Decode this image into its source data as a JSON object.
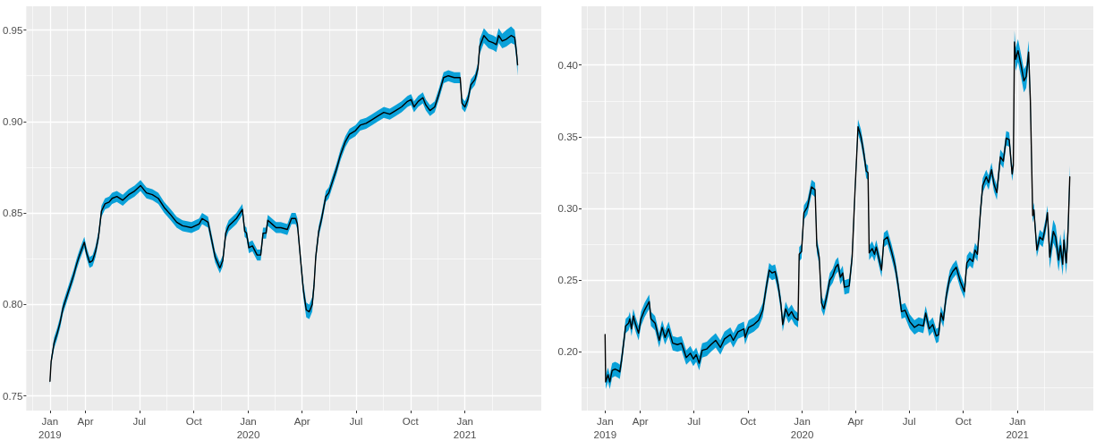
{
  "chart_data": [
    {
      "type": "line",
      "x": [
        "2019-01-31",
        "2019-02-02",
        "2019-02-07",
        "2019-02-12",
        "2019-02-17",
        "2019-02-22",
        "2019-02-27",
        "2019-03-06",
        "2019-03-12",
        "2019-03-17",
        "2019-03-22",
        "2019-03-30",
        "2019-04-03",
        "2019-04-08",
        "2019-04-13",
        "2019-04-18",
        "2019-04-23",
        "2019-04-28",
        "2019-05-04",
        "2019-05-11",
        "2019-05-16",
        "2019-05-24",
        "2019-06-03",
        "2019-06-13",
        "2019-06-23",
        "2019-07-03",
        "2019-07-13",
        "2019-07-23",
        "2019-08-02",
        "2019-08-12",
        "2019-08-23",
        "2019-09-02",
        "2019-09-12",
        "2019-09-27",
        "2019-10-10",
        "2019-10-15",
        "2019-10-25",
        "2019-11-01",
        "2019-11-06",
        "2019-11-14",
        "2019-11-19",
        "2019-11-24",
        "2019-11-29",
        "2019-12-12",
        "2019-12-22",
        "2019-12-26",
        "2019-12-29",
        "2020-01-02",
        "2020-01-08",
        "2020-01-16",
        "2020-01-22",
        "2020-01-26",
        "2020-01-31",
        "2020-02-03",
        "2020-02-10",
        "2020-02-17",
        "2020-02-25",
        "2020-03-07",
        "2020-03-14",
        "2020-03-21",
        "2020-03-24",
        "2020-03-29",
        "2020-04-03",
        "2020-04-08",
        "2020-04-13",
        "2020-04-18",
        "2020-04-21",
        "2020-04-24",
        "2020-04-29",
        "2020-05-04",
        "2020-05-11",
        "2020-05-16",
        "2020-05-21",
        "2020-05-29",
        "2020-06-05",
        "2020-06-13",
        "2020-06-20",
        "2020-06-30",
        "2020-07-08",
        "2020-07-18",
        "2020-07-28",
        "2020-08-07",
        "2020-08-17",
        "2020-08-27",
        "2020-09-06",
        "2020-09-16",
        "2020-09-26",
        "2020-10-02",
        "2020-10-07",
        "2020-10-14",
        "2020-10-22",
        "2020-10-27",
        "2020-11-03",
        "2020-11-11",
        "2020-11-18",
        "2020-11-26",
        "2020-12-04",
        "2020-12-14",
        "2020-12-24",
        "2020-12-27",
        "2021-01-01",
        "2021-01-06",
        "2021-01-11",
        "2021-01-18",
        "2021-01-23",
        "2021-01-26",
        "2021-02-02",
        "2021-02-10",
        "2021-02-18",
        "2021-02-23",
        "2021-02-27",
        "2021-03-05",
        "2021-03-12",
        "2021-03-20",
        "2021-03-26",
        "2021-03-29",
        "2021-03-31"
      ],
      "series": [
        {
          "color": "#000000",
          "values": [
            0.758,
            0.769,
            0.779,
            0.784,
            0.79,
            0.798,
            0.803,
            0.81,
            0.816,
            0.822,
            0.827,
            0.834,
            0.828,
            0.823,
            0.824,
            0.829,
            0.837,
            0.851,
            0.855,
            0.856,
            0.858,
            0.859,
            0.857,
            0.86,
            0.862,
            0.865,
            0.861,
            0.86,
            0.858,
            0.853,
            0.849,
            0.845,
            0.843,
            0.842,
            0.844,
            0.847,
            0.845,
            0.834,
            0.826,
            0.82,
            0.824,
            0.839,
            0.843,
            0.847,
            0.852,
            0.84,
            0.839,
            0.831,
            0.832,
            0.827,
            0.827,
            0.839,
            0.839,
            0.846,
            0.844,
            0.842,
            0.842,
            0.841,
            0.847,
            0.847,
            0.844,
            0.826,
            0.808,
            0.797,
            0.796,
            0.8,
            0.81,
            0.826,
            0.84,
            0.847,
            0.859,
            0.861,
            0.866,
            0.874,
            0.882,
            0.889,
            0.893,
            0.895,
            0.898,
            0.899,
            0.901,
            0.903,
            0.905,
            0.904,
            0.906,
            0.908,
            0.911,
            0.912,
            0.908,
            0.911,
            0.913,
            0.909,
            0.906,
            0.908,
            0.915,
            0.924,
            0.925,
            0.924,
            0.924,
            0.91,
            0.908,
            0.912,
            0.92,
            0.923,
            0.929,
            0.941,
            0.947,
            0.944,
            0.943,
            0.942,
            0.947,
            0.944,
            0.945,
            0.947,
            0.946,
            0.938,
            0.931
          ],
          "lower": [
            0.756,
            0.767,
            0.776,
            0.781,
            0.787,
            0.795,
            0.8,
            0.807,
            0.813,
            0.819,
            0.824,
            0.831,
            0.825,
            0.82,
            0.821,
            0.826,
            0.834,
            0.848,
            0.852,
            0.853,
            0.855,
            0.856,
            0.854,
            0.857,
            0.859,
            0.862,
            0.858,
            0.857,
            0.855,
            0.85,
            0.846,
            0.842,
            0.84,
            0.839,
            0.841,
            0.844,
            0.842,
            0.831,
            0.823,
            0.817,
            0.821,
            0.836,
            0.84,
            0.844,
            0.849,
            0.837,
            0.836,
            0.828,
            0.829,
            0.824,
            0.824,
            0.836,
            0.836,
            0.843,
            0.841,
            0.839,
            0.839,
            0.838,
            0.844,
            0.844,
            0.841,
            0.823,
            0.804,
            0.793,
            0.792,
            0.796,
            0.806,
            0.823,
            0.837,
            0.844,
            0.856,
            0.858,
            0.863,
            0.871,
            0.879,
            0.886,
            0.89,
            0.892,
            0.895,
            0.896,
            0.898,
            0.9,
            0.902,
            0.901,
            0.903,
            0.905,
            0.908,
            0.909,
            0.905,
            0.908,
            0.91,
            0.906,
            0.903,
            0.905,
            0.912,
            0.921,
            0.922,
            0.921,
            0.921,
            0.907,
            0.905,
            0.909,
            0.917,
            0.92,
            0.926,
            0.937,
            0.943,
            0.94,
            0.939,
            0.938,
            0.943,
            0.94,
            0.941,
            0.943,
            0.942,
            0.934,
            0.925
          ],
          "upper": [
            0.76,
            0.771,
            0.782,
            0.787,
            0.793,
            0.801,
            0.806,
            0.813,
            0.819,
            0.825,
            0.83,
            0.837,
            0.831,
            0.826,
            0.827,
            0.832,
            0.84,
            0.854,
            0.858,
            0.859,
            0.861,
            0.862,
            0.86,
            0.863,
            0.865,
            0.868,
            0.864,
            0.863,
            0.861,
            0.856,
            0.852,
            0.848,
            0.846,
            0.845,
            0.847,
            0.85,
            0.848,
            0.837,
            0.829,
            0.823,
            0.827,
            0.842,
            0.846,
            0.85,
            0.855,
            0.843,
            0.842,
            0.834,
            0.835,
            0.83,
            0.83,
            0.842,
            0.842,
            0.849,
            0.847,
            0.845,
            0.845,
            0.844,
            0.85,
            0.85,
            0.847,
            0.829,
            0.812,
            0.801,
            0.8,
            0.804,
            0.814,
            0.829,
            0.843,
            0.85,
            0.862,
            0.864,
            0.869,
            0.877,
            0.885,
            0.892,
            0.896,
            0.898,
            0.901,
            0.902,
            0.904,
            0.906,
            0.908,
            0.907,
            0.909,
            0.911,
            0.914,
            0.915,
            0.911,
            0.914,
            0.916,
            0.912,
            0.909,
            0.911,
            0.918,
            0.927,
            0.928,
            0.927,
            0.927,
            0.913,
            0.911,
            0.915,
            0.923,
            0.926,
            0.932,
            0.945,
            0.951,
            0.948,
            0.947,
            0.946,
            0.951,
            0.948,
            0.95,
            0.952,
            0.95,
            0.942,
            0.934
          ]
        }
      ],
      "xlim": [
        "2018-12-22",
        "2021-05-10"
      ],
      "xticks": [
        {
          "value": "2019-01-31",
          "label": "Jan\n2019"
        },
        {
          "value": "2019-04-01",
          "label": "Apr"
        },
        {
          "value": "2019-07-01",
          "label": "Jul"
        },
        {
          "value": "2019-10-01",
          "label": "Oct"
        },
        {
          "value": "2020-01-01",
          "label": "Jan\n2020"
        },
        {
          "value": "2020-04-01",
          "label": "Apr"
        },
        {
          "value": "2020-07-01",
          "label": "Jul"
        },
        {
          "value": "2020-10-01",
          "label": "Oct"
        },
        {
          "value": "2021-01-01",
          "label": "Jan\n2021"
        }
      ],
      "ylim": [
        0.742,
        0.963
      ],
      "yticks": [
        0.75,
        {
          "value": 0.8,
          "label": "0.80"
        },
        0.85,
        {
          "value": 0.9,
          "label": "0.90"
        },
        0.95
      ],
      "grid": true
    },
    {
      "type": "line",
      "x": [
        "2019-01-31",
        "2019-02-01",
        "2019-02-05",
        "2019-02-08",
        "2019-02-12",
        "2019-02-17",
        "2019-02-22",
        "2019-02-25",
        "2019-02-28",
        "2019-03-07",
        "2019-03-12",
        "2019-03-14",
        "2019-03-17",
        "2019-03-20",
        "2019-03-24",
        "2019-03-29",
        "2019-04-02",
        "2019-04-08",
        "2019-04-16",
        "2019-04-19",
        "2019-04-26",
        "2019-05-03",
        "2019-05-08",
        "2019-05-13",
        "2019-05-19",
        "2019-05-26",
        "2019-06-03",
        "2019-06-10",
        "2019-06-18",
        "2019-06-25",
        "2019-06-30",
        "2019-07-05",
        "2019-07-10",
        "2019-07-15",
        "2019-07-23",
        "2019-07-30",
        "2019-08-07",
        "2019-08-15",
        "2019-08-22",
        "2019-09-01",
        "2019-09-06",
        "2019-09-14",
        "2019-09-24",
        "2019-09-26",
        "2019-10-02",
        "2019-10-11",
        "2019-10-19",
        "2019-10-26",
        "2019-11-01",
        "2019-11-06",
        "2019-11-11",
        "2019-11-16",
        "2019-11-21",
        "2019-11-26",
        "2019-11-29",
        "2019-12-04",
        "2019-12-09",
        "2019-12-14",
        "2019-12-19",
        "2019-12-25",
        "2019-12-27",
        "2019-12-31",
        "2020-01-04",
        "2020-01-10",
        "2020-01-17",
        "2020-01-23",
        "2020-01-26",
        "2020-01-30",
        "2020-02-03",
        "2020-02-07",
        "2020-02-12",
        "2020-02-17",
        "2020-02-22",
        "2020-02-27",
        "2020-03-02",
        "2020-03-06",
        "2020-03-10",
        "2020-03-13",
        "2020-03-21",
        "2020-03-26",
        "2020-03-31",
        "2020-04-05",
        "2020-04-10",
        "2020-04-15",
        "2020-04-19",
        "2020-04-22",
        "2020-04-24",
        "2020-04-29",
        "2020-05-03",
        "2020-05-06",
        "2020-05-10",
        "2020-05-15",
        "2020-05-19",
        "2020-05-25",
        "2020-06-01",
        "2020-06-07",
        "2020-06-12",
        "2020-06-18",
        "2020-06-24",
        "2020-07-02",
        "2020-07-10",
        "2020-07-17",
        "2020-07-25",
        "2020-07-29",
        "2020-08-04",
        "2020-08-10",
        "2020-08-16",
        "2020-08-20",
        "2020-08-24",
        "2020-08-28",
        "2020-09-02",
        "2020-09-08",
        "2020-09-13",
        "2020-09-19",
        "2020-09-26",
        "2020-10-03",
        "2020-10-07",
        "2020-10-12",
        "2020-10-17",
        "2020-10-21",
        "2020-10-25",
        "2020-10-30",
        "2020-11-03",
        "2020-11-09",
        "2020-11-13",
        "2020-11-18",
        "2020-11-22",
        "2020-11-27",
        "2020-12-03",
        "2020-12-08",
        "2020-12-13",
        "2020-12-18",
        "2020-12-23",
        "2020-12-25",
        "2020-12-27",
        "2020-12-29",
        "2021-01-02",
        "2021-01-07",
        "2021-01-12",
        "2021-01-16",
        "2021-01-20",
        "2021-01-23",
        "2021-01-27",
        "2021-01-29",
        "2021-02-03",
        "2021-02-08",
        "2021-02-13",
        "2021-02-18",
        "2021-02-21",
        "2021-02-25",
        "2021-03-03",
        "2021-03-07",
        "2021-03-12",
        "2021-03-15",
        "2021-03-19",
        "2021-03-21",
        "2021-03-25",
        "2021-03-28",
        "2021-03-31"
      ],
      "series": [
        {
          "color": "#000000",
          "values": [
            0.212,
            0.179,
            0.184,
            0.179,
            0.187,
            0.188,
            0.187,
            0.186,
            0.194,
            0.218,
            0.22,
            0.223,
            0.216,
            0.225,
            0.219,
            0.213,
            0.223,
            0.229,
            0.235,
            0.223,
            0.22,
            0.208,
            0.217,
            0.21,
            0.216,
            0.206,
            0.205,
            0.206,
            0.196,
            0.199,
            0.195,
            0.198,
            0.192,
            0.201,
            0.202,
            0.205,
            0.208,
            0.203,
            0.209,
            0.212,
            0.208,
            0.214,
            0.216,
            0.21,
            0.217,
            0.219,
            0.222,
            0.229,
            0.245,
            0.257,
            0.255,
            0.256,
            0.247,
            0.233,
            0.219,
            0.23,
            0.225,
            0.228,
            0.224,
            0.222,
            0.268,
            0.27,
            0.297,
            0.301,
            0.315,
            0.313,
            0.274,
            0.266,
            0.234,
            0.23,
            0.239,
            0.25,
            0.253,
            0.259,
            0.261,
            0.252,
            0.255,
            0.245,
            0.246,
            0.266,
            0.313,
            0.357,
            0.35,
            0.338,
            0.326,
            0.325,
            0.269,
            0.272,
            0.268,
            0.273,
            0.266,
            0.257,
            0.278,
            0.28,
            0.27,
            0.26,
            0.247,
            0.228,
            0.229,
            0.221,
            0.217,
            0.219,
            0.218,
            0.227,
            0.216,
            0.219,
            0.211,
            0.212,
            0.227,
            0.222,
            0.239,
            0.252,
            0.256,
            0.259,
            0.249,
            0.242,
            0.262,
            0.265,
            0.263,
            0.271,
            0.268,
            0.297,
            0.316,
            0.322,
            0.318,
            0.327,
            0.317,
            0.311,
            0.336,
            0.333,
            0.349,
            0.348,
            0.324,
            0.33,
            0.416,
            0.404,
            0.41,
            0.4,
            0.389,
            0.392,
            0.409,
            0.375,
            0.295,
            0.299,
            0.271,
            0.28,
            0.278,
            0.288,
            0.297,
            0.266,
            0.284,
            0.28,
            0.264,
            0.274,
            0.261,
            0.278,
            0.262,
            0.284,
            0.322
          ],
          "lower": [
            0.209,
            0.174,
            0.179,
            0.174,
            0.182,
            0.183,
            0.182,
            0.181,
            0.189,
            0.213,
            0.215,
            0.218,
            0.211,
            0.22,
            0.214,
            0.208,
            0.218,
            0.224,
            0.23,
            0.218,
            0.215,
            0.203,
            0.212,
            0.205,
            0.211,
            0.201,
            0.2,
            0.201,
            0.191,
            0.194,
            0.19,
            0.193,
            0.187,
            0.196,
            0.197,
            0.2,
            0.203,
            0.198,
            0.204,
            0.207,
            0.203,
            0.209,
            0.211,
            0.205,
            0.212,
            0.214,
            0.217,
            0.224,
            0.24,
            0.252,
            0.25,
            0.251,
            0.242,
            0.228,
            0.214,
            0.225,
            0.22,
            0.223,
            0.219,
            0.217,
            0.263,
            0.265,
            0.292,
            0.296,
            0.31,
            0.308,
            0.269,
            0.261,
            0.229,
            0.225,
            0.234,
            0.245,
            0.248,
            0.254,
            0.256,
            0.247,
            0.25,
            0.24,
            0.241,
            0.261,
            0.308,
            0.352,
            0.345,
            0.333,
            0.321,
            0.32,
            0.264,
            0.267,
            0.263,
            0.268,
            0.261,
            0.252,
            0.273,
            0.275,
            0.265,
            0.255,
            0.242,
            0.223,
            0.224,
            0.216,
            0.212,
            0.214,
            0.213,
            0.222,
            0.211,
            0.214,
            0.206,
            0.207,
            0.222,
            0.217,
            0.234,
            0.247,
            0.251,
            0.254,
            0.244,
            0.237,
            0.257,
            0.26,
            0.258,
            0.266,
            0.263,
            0.292,
            0.311,
            0.317,
            0.313,
            0.322,
            0.312,
            0.306,
            0.331,
            0.328,
            0.344,
            0.343,
            0.319,
            0.325,
            0.408,
            0.396,
            0.402,
            0.392,
            0.381,
            0.384,
            0.401,
            0.367,
            0.29,
            0.294,
            0.266,
            0.275,
            0.273,
            0.283,
            0.292,
            0.258,
            0.276,
            0.272,
            0.256,
            0.266,
            0.253,
            0.27,
            0.254,
            0.276,
            0.314
          ],
          "upper": [
            0.215,
            0.184,
            0.189,
            0.184,
            0.192,
            0.193,
            0.192,
            0.191,
            0.199,
            0.223,
            0.225,
            0.228,
            0.221,
            0.23,
            0.224,
            0.218,
            0.228,
            0.234,
            0.24,
            0.228,
            0.225,
            0.213,
            0.222,
            0.215,
            0.221,
            0.211,
            0.21,
            0.211,
            0.201,
            0.204,
            0.2,
            0.203,
            0.197,
            0.206,
            0.207,
            0.21,
            0.213,
            0.208,
            0.214,
            0.217,
            0.213,
            0.219,
            0.221,
            0.215,
            0.222,
            0.224,
            0.227,
            0.234,
            0.25,
            0.262,
            0.26,
            0.261,
            0.252,
            0.238,
            0.224,
            0.235,
            0.23,
            0.233,
            0.229,
            0.227,
            0.273,
            0.275,
            0.302,
            0.306,
            0.32,
            0.318,
            0.279,
            0.271,
            0.239,
            0.235,
            0.244,
            0.255,
            0.258,
            0.264,
            0.266,
            0.257,
            0.26,
            0.25,
            0.251,
            0.271,
            0.318,
            0.362,
            0.355,
            0.343,
            0.331,
            0.33,
            0.274,
            0.277,
            0.273,
            0.278,
            0.271,
            0.262,
            0.283,
            0.285,
            0.275,
            0.265,
            0.252,
            0.233,
            0.234,
            0.226,
            0.222,
            0.224,
            0.223,
            0.232,
            0.221,
            0.224,
            0.216,
            0.217,
            0.232,
            0.227,
            0.244,
            0.257,
            0.261,
            0.264,
            0.254,
            0.247,
            0.267,
            0.27,
            0.268,
            0.276,
            0.273,
            0.302,
            0.321,
            0.327,
            0.323,
            0.332,
            0.322,
            0.316,
            0.341,
            0.338,
            0.354,
            0.353,
            0.329,
            0.335,
            0.424,
            0.412,
            0.418,
            0.408,
            0.397,
            0.4,
            0.417,
            0.383,
            0.3,
            0.304,
            0.276,
            0.285,
            0.283,
            0.293,
            0.302,
            0.274,
            0.292,
            0.288,
            0.272,
            0.282,
            0.269,
            0.286,
            0.27,
            0.292,
            0.33
          ]
        }
      ],
      "xlim": [
        "2018-12-22",
        "2021-05-10"
      ],
      "xticks": [
        {
          "value": "2019-01-31",
          "label": "Jan\n2019"
        },
        {
          "value": "2019-04-01",
          "label": "Apr"
        },
        {
          "value": "2019-07-01",
          "label": "Jul"
        },
        {
          "value": "2019-10-01",
          "label": "Oct"
        },
        {
          "value": "2020-01-01",
          "label": "Jan\n2020"
        },
        {
          "value": "2020-04-01",
          "label": "Apr"
        },
        {
          "value": "2020-07-01",
          "label": "Jul"
        },
        {
          "value": "2020-10-01",
          "label": "Oct"
        },
        {
          "value": "2021-01-01",
          "label": "Jan\n2021"
        }
      ],
      "ylim": [
        0.159,
        0.441
      ],
      "yticks": [
        {
          "value": 0.2,
          "label": "0.20"
        },
        0.25,
        {
          "value": 0.3,
          "label": "0.30"
        },
        0.35,
        {
          "value": 0.4,
          "label": "0.40"
        }
      ],
      "grid": true
    }
  ]
}
